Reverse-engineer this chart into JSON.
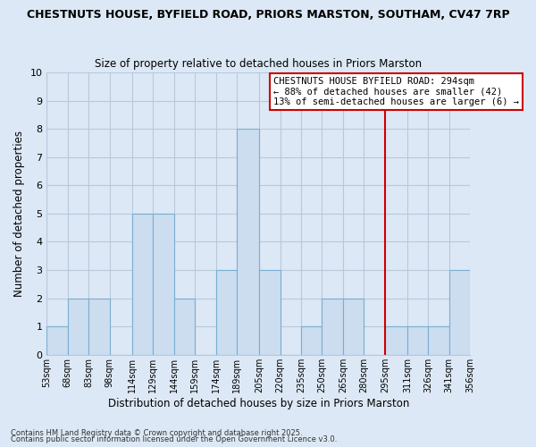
{
  "title1": "CHESTNUTS HOUSE, BYFIELD ROAD, PRIORS MARSTON, SOUTHAM, CV47 7RP",
  "title2": "Size of property relative to detached houses in Priors Marston",
  "xlabel": "Distribution of detached houses by size in Priors Marston",
  "ylabel": "Number of detached properties",
  "bin_labels": [
    "53sqm",
    "68sqm",
    "83sqm",
    "98sqm",
    "114sqm",
    "129sqm",
    "144sqm",
    "159sqm",
    "174sqm",
    "189sqm",
    "205sqm",
    "220sqm",
    "235sqm",
    "250sqm",
    "265sqm",
    "280sqm",
    "295sqm",
    "311sqm",
    "326sqm",
    "341sqm",
    "356sqm"
  ],
  "bar_heights": [
    1,
    2,
    2,
    0,
    5,
    5,
    2,
    0,
    3,
    8,
    3,
    0,
    1,
    2,
    2,
    0,
    1,
    1,
    1,
    3
  ],
  "bin_lefts": [
    53,
    68,
    83,
    98,
    114,
    129,
    144,
    159,
    174,
    189,
    205,
    220,
    235,
    250,
    265,
    280,
    295,
    311,
    326,
    341
  ],
  "bin_widths": [
    15,
    15,
    15,
    16,
    15,
    15,
    15,
    15,
    15,
    16,
    15,
    15,
    15,
    15,
    15,
    15,
    16,
    15,
    15,
    15
  ],
  "bar_color": "#ccddf0",
  "bar_edge_color": "#7aaed0",
  "grid_color": "#b8c8dc",
  "background_color": "#dce8f5",
  "ref_line_x": 295,
  "ref_line_color": "#cc0000",
  "annotation_text": "CHESTNUTS HOUSE BYFIELD ROAD: 294sqm\n← 88% of detached houses are smaller (42)\n13% of semi-detached houses are larger (6) →",
  "annotation_box_color": "#ffffff",
  "annotation_box_edge_color": "#cc0000",
  "ylim": [
    0,
    10
  ],
  "yticks": [
    0,
    1,
    2,
    3,
    4,
    5,
    6,
    7,
    8,
    9,
    10
  ],
  "xlim_left": 53,
  "xlim_right": 356,
  "footnote1": "Contains HM Land Registry data © Crown copyright and database right 2025.",
  "footnote2": "Contains public sector information licensed under the Open Government Licence v3.0."
}
